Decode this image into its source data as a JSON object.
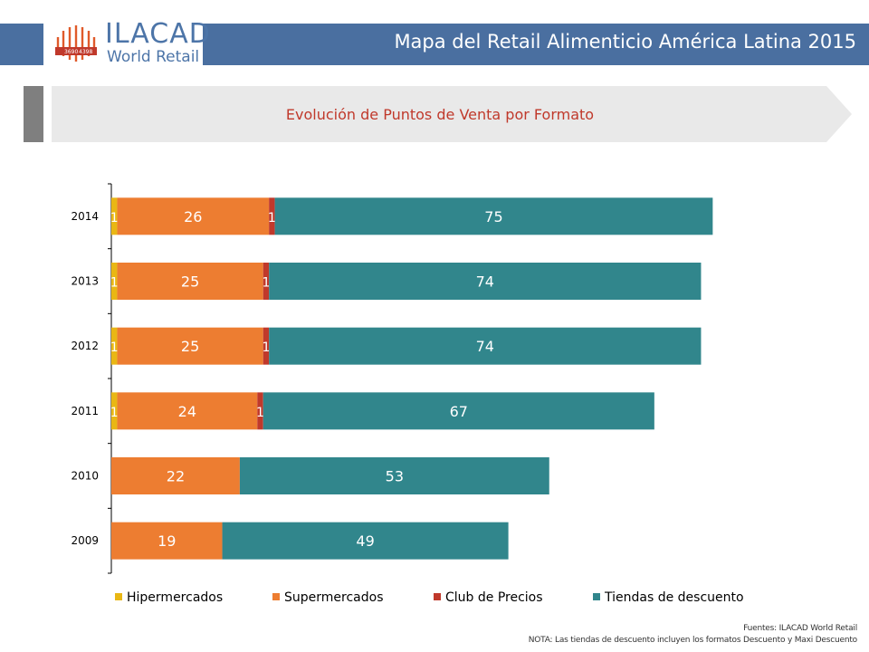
{
  "header": {
    "title": "Mapa del Retail Alimenticio América Latina 2015",
    "logo_word": "ILACAD",
    "logo_sub": "World Retail",
    "logo_seal_numbers": [
      "3690",
      "4398"
    ]
  },
  "section": {
    "title": "Evolución de Puntos de Venta por Formato"
  },
  "footer": {
    "source": "Fuentes: ILACAD World Retail",
    "note": "NOTA: Las tiendas de descuento incluyen los formatos Descuento y Maxi Descuento"
  },
  "colors": {
    "header": "#4a6fa0",
    "hipermercados": "#e9b714",
    "supermercados": "#ed7d31",
    "club_de_precios": "#c0392b",
    "tiendas_de_descuento": "#31868c"
  },
  "chart_data": {
    "type": "bar",
    "orientation": "horizontal",
    "stacked": true,
    "categories": [
      "2009",
      "2010",
      "2011",
      "2012",
      "2013",
      "2014"
    ],
    "series": [
      {
        "name": "Hipermercados",
        "values": [
          0,
          0,
          1,
          1,
          1,
          1
        ]
      },
      {
        "name": "Supermercados",
        "values": [
          19,
          22,
          24,
          25,
          25,
          26
        ]
      },
      {
        "name": "Club de Precios",
        "values": [
          0,
          0,
          1,
          1,
          1,
          1
        ]
      },
      {
        "name": "Tiendas de descuento",
        "values": [
          49,
          53,
          67,
          74,
          74,
          75
        ]
      }
    ],
    "xlim": [
      0,
      104
    ],
    "grid": false,
    "legend_position": "bottom",
    "axis_labels_visible": false
  }
}
